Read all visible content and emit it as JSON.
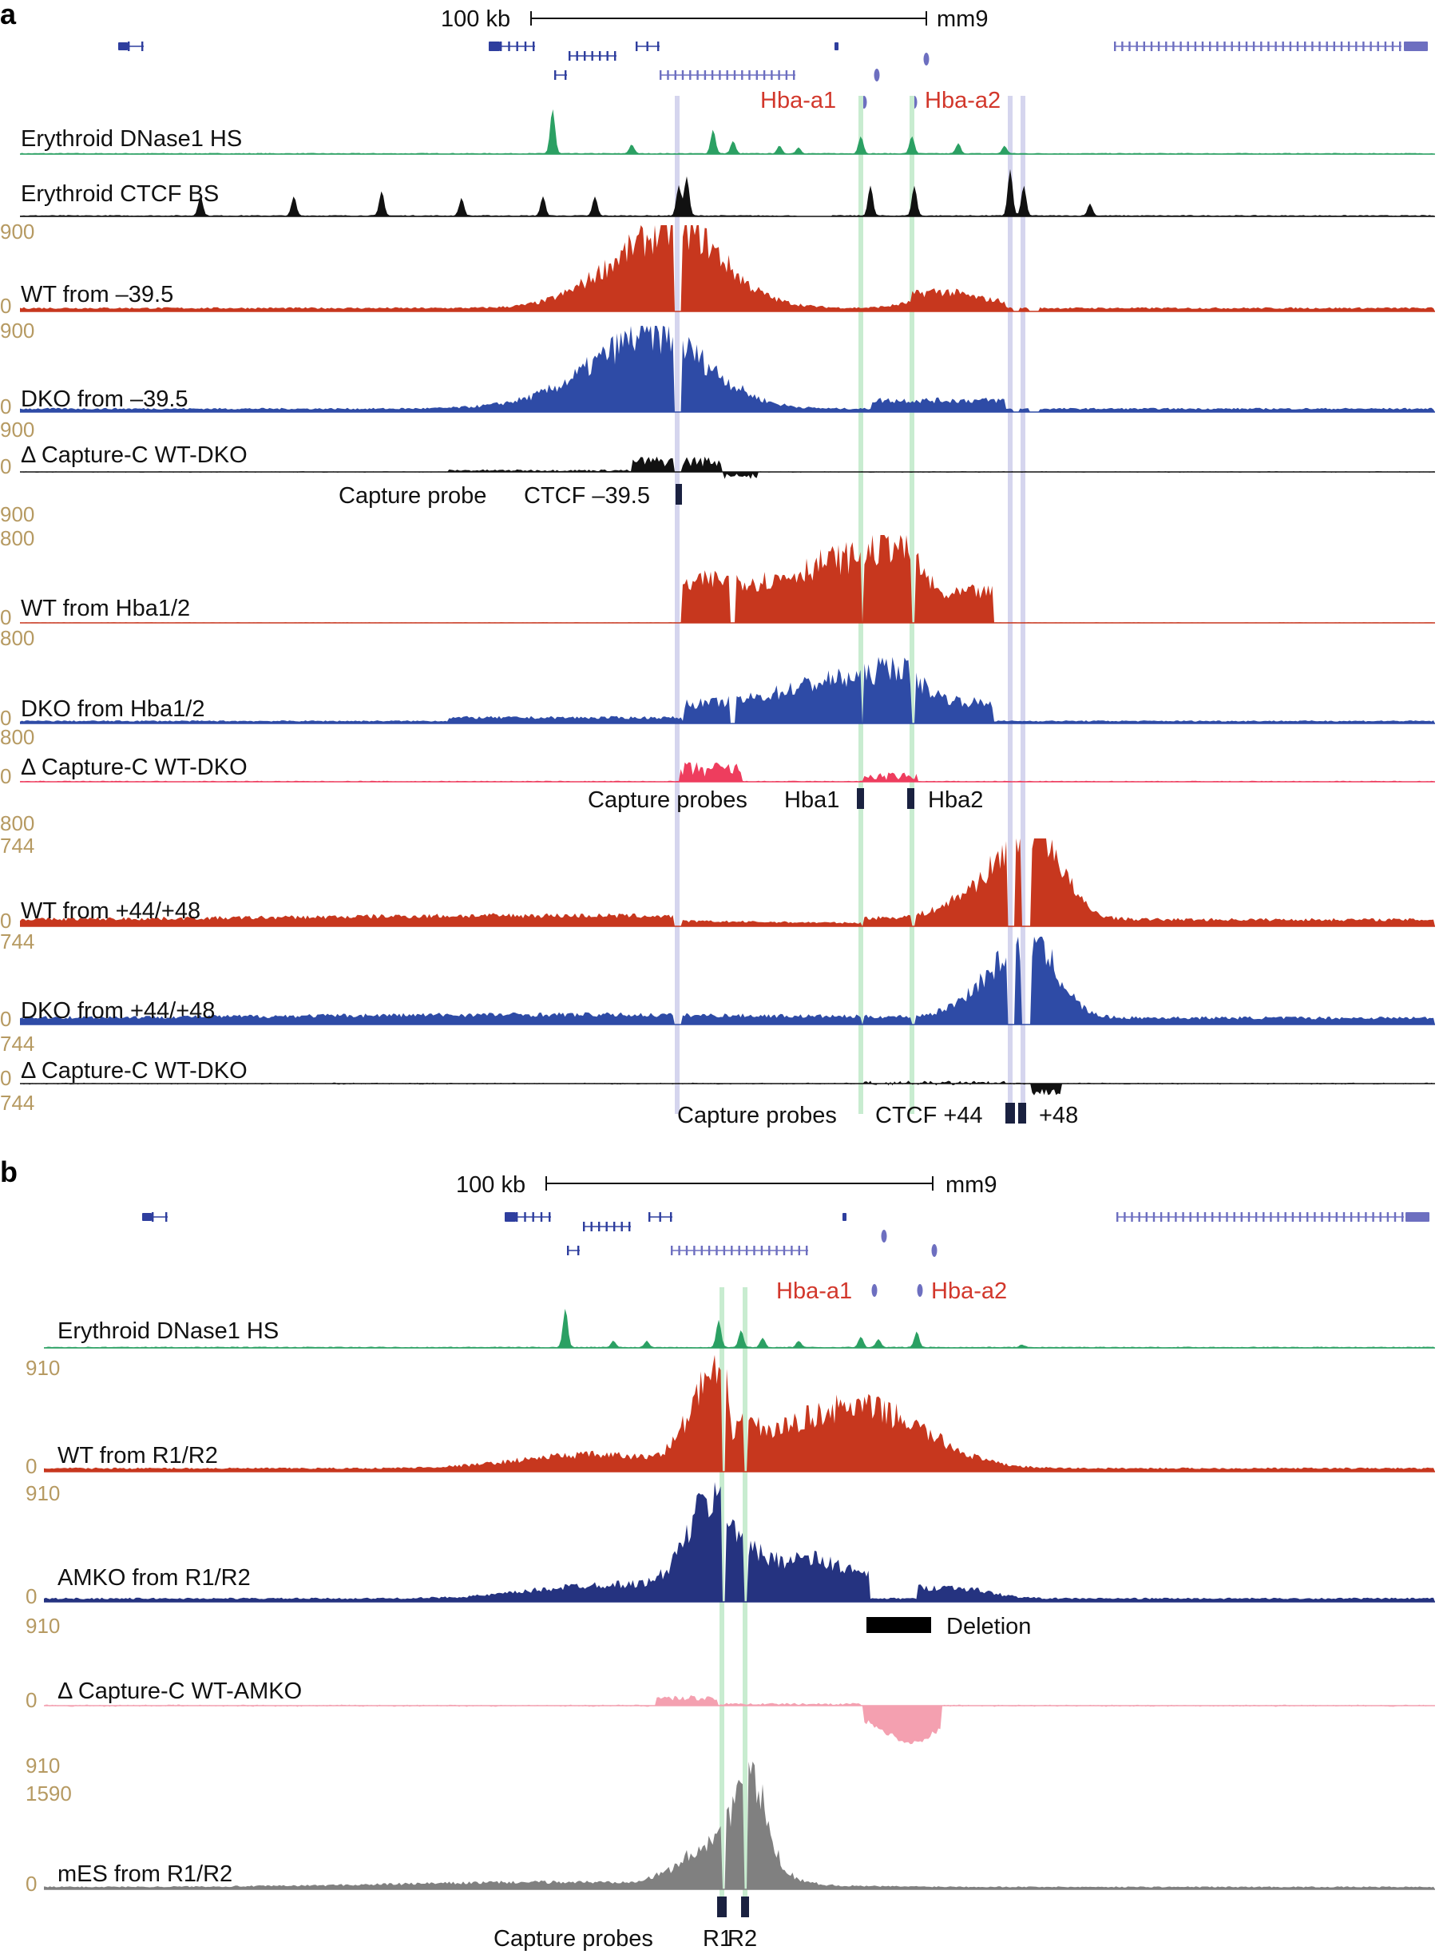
{
  "colors": {
    "wt": "#c7371e",
    "dko": "#2e4ba6",
    "amko": "#253380",
    "delta_black": "#111111",
    "delta_pink": "#ee3d5e",
    "delta_pink_light": "#f4a0b0",
    "dnase": "#2ba063",
    "ctcf": "#111111",
    "mes": "#808080",
    "gene": "#2e3e9e",
    "gene_light": "#6d6fc0",
    "highlight_green": "#c8ecd0",
    "highlight_lavender": "#d5d5ee",
    "scale_text": "#b69a62",
    "gene_label": "#d2372b",
    "probe": "#1a2140"
  },
  "panel_a": {
    "label": "a",
    "scalebar": {
      "left_text": "100 kb",
      "right_text": "mm9"
    },
    "genes": {
      "hba_a1": "Hba-a1",
      "hba_a2": "Hba-a2"
    },
    "tracks": [
      {
        "id": "a-dnase",
        "label": "Erythroid DNase1 HS",
        "max": "",
        "min": ""
      },
      {
        "id": "a-ctcf",
        "label": "Erythroid CTCF BS",
        "max": "",
        "min": ""
      },
      {
        "id": "a-wt-395",
        "label": "WT from –39.5",
        "max": "900",
        "min": "0"
      },
      {
        "id": "a-dko-395",
        "label": "DKO from –39.5",
        "max": "900",
        "min": "0"
      },
      {
        "id": "a-delta-395",
        "label": "Δ Capture-C  WT-DKO",
        "max": "900",
        "min": "0",
        "bottom": "900"
      },
      {
        "id": "a-wt-hba",
        "label": "WT from Hba1/2",
        "max": "800",
        "min": "0"
      },
      {
        "id": "a-dko-hba",
        "label": "DKO from Hba1/2",
        "max": "800",
        "min": "0"
      },
      {
        "id": "a-delta-hba",
        "label": "Δ Capture-C  WT-DKO",
        "max": "800",
        "min": "0",
        "bottom": "800"
      },
      {
        "id": "a-wt-4448",
        "label": "WT from +44/+48",
        "max": "744",
        "min": "0"
      },
      {
        "id": "a-dko-4448",
        "label": "DKO from +44/+48",
        "max": "744",
        "min": "0"
      },
      {
        "id": "a-delta-4448",
        "label": "Δ Capture-C  WT-DKO",
        "max": "744",
        "min": "0",
        "bottom": "744"
      }
    ],
    "probes": {
      "p395": {
        "prefix": "Capture probe",
        "name": "CTCF –39.5"
      },
      "phba": {
        "prefix": "Capture probes",
        "name1": "Hba1",
        "name2": "Hba2"
      },
      "p4448": {
        "prefix": "Capture probes",
        "name1": "CTCF +44",
        "name2": "+48"
      }
    }
  },
  "panel_b": {
    "label": "b",
    "scalebar": {
      "left_text": "100 kb",
      "right_text": "mm9"
    },
    "genes": {
      "hba_a1": "Hba-a1",
      "hba_a2": "Hba-a2"
    },
    "tracks": [
      {
        "id": "b-dnase",
        "label": "Erythroid DNase1 HS",
        "max": "",
        "min": ""
      },
      {
        "id": "b-wt",
        "label": "WT from R1/R2",
        "max": "910",
        "min": "0"
      },
      {
        "id": "b-amko",
        "label": "AMKO from R1/R2",
        "max": "910",
        "min": "0"
      },
      {
        "id": "b-delta",
        "label": "Δ Capture-C  WT-AMKO",
        "max": "910",
        "min": "0",
        "bottom": "910"
      },
      {
        "id": "b-mes",
        "label": "mES from R1/R2",
        "max": "1590",
        "min": "0"
      }
    ],
    "deletion_label": "Deletion",
    "probes": {
      "prefix": "Capture probes",
      "name1": "R1",
      "name2": "R2"
    }
  }
}
